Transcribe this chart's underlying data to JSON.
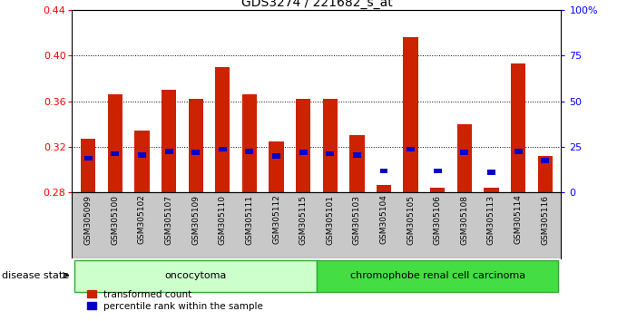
{
  "title": "GDS3274 / 221682_s_at",
  "samples": [
    "GSM305099",
    "GSM305100",
    "GSM305102",
    "GSM305107",
    "GSM305109",
    "GSM305110",
    "GSM305111",
    "GSM305112",
    "GSM305115",
    "GSM305101",
    "GSM305103",
    "GSM305104",
    "GSM305105",
    "GSM305106",
    "GSM305108",
    "GSM305113",
    "GSM305114",
    "GSM305116"
  ],
  "red_values": [
    0.327,
    0.366,
    0.334,
    0.37,
    0.362,
    0.39,
    0.366,
    0.325,
    0.362,
    0.362,
    0.33,
    0.287,
    0.416,
    0.284,
    0.34,
    0.284,
    0.393,
    0.312
  ],
  "blue_values": [
    0.31,
    0.314,
    0.313,
    0.316,
    0.315,
    0.318,
    0.316,
    0.312,
    0.315,
    0.314,
    0.313,
    0.299,
    0.318,
    0.299,
    0.315,
    0.298,
    0.316,
    0.308
  ],
  "base": 0.28,
  "ylim_left": [
    0.28,
    0.44
  ],
  "ylim_right": [
    0,
    100
  ],
  "yticks_left": [
    0.28,
    0.32,
    0.36,
    0.4,
    0.44
  ],
  "yticks_right": [
    0,
    25,
    50,
    75,
    100
  ],
  "group1_count": 9,
  "group1_label": "oncocytoma",
  "group2_label": "chromophobe renal cell carcinoma",
  "group1_color_light": "#CCFFCC",
  "group2_color_dark": "#44DD44",
  "bar_color": "#CC2200",
  "blue_color": "#0000CC",
  "legend_red": "transformed count",
  "legend_blue": "percentile rank within the sample",
  "disease_state_label": "disease state"
}
